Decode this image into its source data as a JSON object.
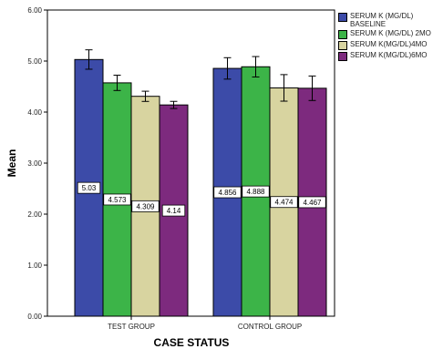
{
  "chart_data": {
    "type": "bar",
    "xlabel": "CASE STATUS",
    "ylabel": "Mean",
    "ylim": [
      0,
      6
    ],
    "yticks": [
      "0.00",
      "1.00",
      "2.00",
      "3.00",
      "4.00",
      "5.00",
      "6.00"
    ],
    "categories": [
      "TEST GROUP",
      "CONTROL GROUP"
    ],
    "grid": false,
    "legend_position": "top-right",
    "error_bars": true,
    "series": [
      {
        "name": "SERUM K (MG/DL)\nBASELINE",
        "color": "#3c4ba8",
        "values": [
          5.03,
          4.856
        ],
        "labels": [
          "5.03",
          "4.856"
        ],
        "err": [
          0.19,
          0.21
        ]
      },
      {
        "name": "SERUM K (MG/DL) 2MO",
        "color": "#3cb448",
        "values": [
          4.573,
          4.888
        ],
        "labels": [
          "4.573",
          "4.888"
        ],
        "err": [
          0.15,
          0.2
        ]
      },
      {
        "name": "SERUM K(MG/DL)4MO",
        "color": "#d8d4a0",
        "values": [
          4.309,
          4.474
        ],
        "labels": [
          "4.309",
          "4.474"
        ],
        "err": [
          0.1,
          0.26
        ]
      },
      {
        "name": "SERUM K(MG/DL)6MO",
        "color": "#7d2a7e",
        "values": [
          4.14,
          4.467
        ],
        "labels": [
          "4.14",
          "4.467"
        ],
        "err": [
          0.07,
          0.24
        ]
      }
    ]
  }
}
